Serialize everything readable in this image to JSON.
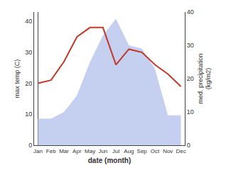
{
  "chart_data": {
    "type": "line",
    "categories": [
      "Jan",
      "Feb",
      "Mar",
      "Apr",
      "May",
      "Jun",
      "Jul",
      "Aug",
      "Sep",
      "Oct",
      "Nov",
      "Dec"
    ],
    "xlabel": "date (month)",
    "ylabel": "max temp (C)",
    "y2label": "med. precipitation\n(kg/m2)",
    "series": [
      {
        "type": "area",
        "axis": "y2",
        "color": "#c5cff0",
        "values": [
          8,
          8,
          10,
          15,
          25,
          33,
          38,
          30,
          29,
          23,
          9,
          9
        ]
      },
      {
        "type": "line",
        "color": "#c0392b",
        "values": [
          20,
          21,
          27,
          35,
          38,
          38,
          26,
          31,
          30,
          26,
          23,
          19
        ]
      }
    ],
    "ylim": [
      0,
      43
    ],
    "yticks": [
      0,
      10,
      20,
      30,
      40
    ],
    "y2lim": [
      0,
      40
    ],
    "y2ticks": [
      0,
      10,
      20,
      30,
      40
    ],
    "grid": false
  }
}
